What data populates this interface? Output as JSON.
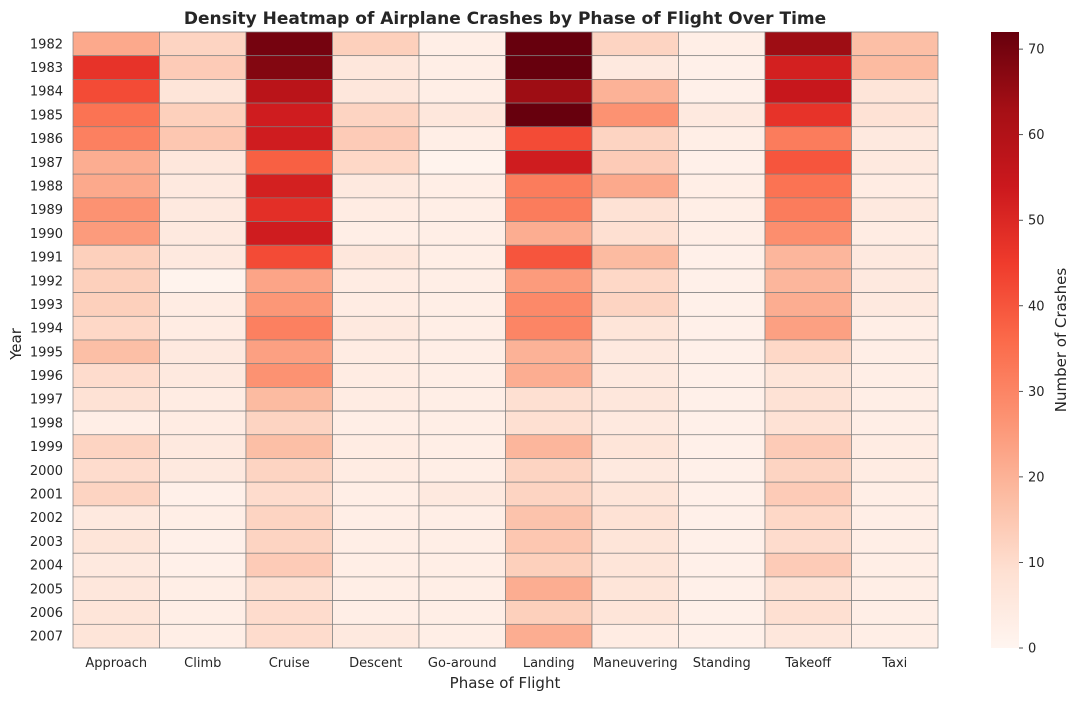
{
  "chart_data": {
    "type": "heatmap",
    "title": "Density Heatmap of Airplane Crashes by Phase of Flight Over Time",
    "xlabel": "Phase of Flight",
    "ylabel": "Year",
    "colorbar_label": "Number of Crashes",
    "colormap": "Reds",
    "vmin": 0,
    "vmax": 72,
    "colorbar_ticks": [
      0,
      10,
      20,
      30,
      40,
      50,
      60,
      70
    ],
    "x_categories": [
      "Approach",
      "Climb",
      "Cruise",
      "Descent",
      "Go-around",
      "Landing",
      "Maneuvering",
      "Standing",
      "Takeoff",
      "Taxi"
    ],
    "y_categories": [
      "1982",
      "1983",
      "1984",
      "1985",
      "1986",
      "1987",
      "1988",
      "1989",
      "1990",
      "1991",
      "1992",
      "1993",
      "1994",
      "1995",
      "1996",
      "1997",
      "1998",
      "1999",
      "2000",
      "2001",
      "2002",
      "2003",
      "2004",
      "2005",
      "2006",
      "2007"
    ],
    "values": [
      [
        22,
        12,
        70,
        13,
        3,
        72,
        12,
        3,
        64,
        17
      ],
      [
        47,
        14,
        68,
        6,
        3,
        72,
        5,
        2,
        52,
        18
      ],
      [
        42,
        7,
        58,
        6,
        3,
        64,
        20,
        2,
        55,
        7
      ],
      [
        34,
        13,
        53,
        12,
        6,
        72,
        27,
        5,
        47,
        8
      ],
      [
        31,
        15,
        53,
        14,
        3,
        42,
        12,
        3,
        32,
        5
      ],
      [
        21,
        6,
        38,
        11,
        1,
        53,
        14,
        2,
        40,
        5
      ],
      [
        22,
        5,
        52,
        5,
        3,
        32,
        22,
        3,
        34,
        4
      ],
      [
        27,
        5,
        48,
        4,
        3,
        32,
        8,
        3,
        32,
        5
      ],
      [
        25,
        5,
        53,
        3,
        3,
        21,
        9,
        3,
        28,
        4
      ],
      [
        13,
        5,
        42,
        6,
        3,
        40,
        18,
        2,
        19,
        5
      ],
      [
        13,
        1,
        23,
        4,
        3,
        25,
        11,
        2,
        19,
        5
      ],
      [
        13,
        4,
        26,
        4,
        3,
        29,
        12,
        2,
        21,
        5
      ],
      [
        11,
        4,
        31,
        5,
        3,
        30,
        7,
        2,
        24,
        3
      ],
      [
        17,
        5,
        24,
        4,
        3,
        20,
        5,
        2,
        11,
        3
      ],
      [
        10,
        5,
        27,
        4,
        3,
        21,
        5,
        2,
        7,
        3
      ],
      [
        8,
        4,
        18,
        4,
        3,
        9,
        6,
        2,
        8,
        3
      ],
      [
        3,
        4,
        12,
        3,
        3,
        9,
        5,
        2,
        8,
        3
      ],
      [
        12,
        5,
        17,
        4,
        3,
        19,
        7,
        2,
        14,
        4
      ],
      [
        10,
        5,
        12,
        4,
        3,
        12,
        5,
        2,
        12,
        4
      ],
      [
        12,
        2,
        10,
        3,
        5,
        12,
        7,
        2,
        14,
        3
      ],
      [
        5,
        3,
        12,
        3,
        3,
        16,
        8,
        2,
        11,
        3
      ],
      [
        7,
        2,
        12,
        3,
        3,
        15,
        7,
        2,
        10,
        3
      ],
      [
        5,
        2,
        14,
        3,
        3,
        13,
        7,
        2,
        14,
        3
      ],
      [
        6,
        3,
        9,
        3,
        3,
        21,
        7,
        2,
        8,
        3
      ],
      [
        7,
        3,
        10,
        3,
        3,
        13,
        7,
        2,
        9,
        3
      ],
      [
        7,
        3,
        10,
        5,
        3,
        21,
        4,
        2,
        6,
        3
      ]
    ]
  }
}
